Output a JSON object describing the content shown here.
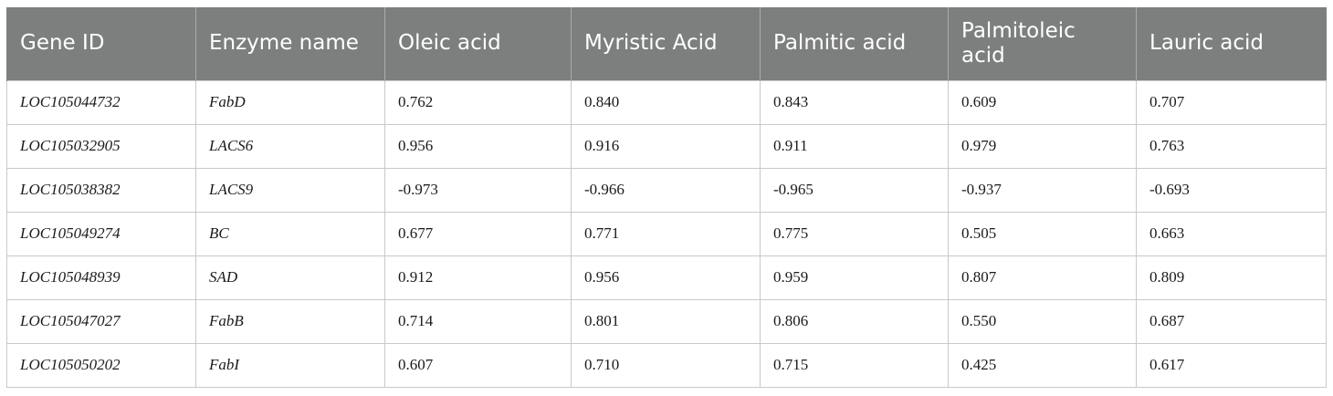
{
  "table": {
    "headers": [
      "Gene ID",
      "Enzyme name",
      "Oleic acid",
      "Myristic Acid",
      "Palmitic acid",
      "Palmitoleic acid",
      "Lauric acid"
    ],
    "rows": [
      [
        "LOC105044732",
        "FabD",
        "0.762",
        "0.840",
        "0.843",
        "0.609",
        "0.707"
      ],
      [
        "LOC105032905",
        "LACS6",
        "0.956",
        "0.916",
        "0.911",
        "0.979",
        "0.763"
      ],
      [
        "LOC105038382",
        "LACS9",
        "-0.973",
        "-0.966",
        "-0.965",
        "-0.937",
        "-0.693"
      ],
      [
        "LOC105049274",
        "BC",
        "0.677",
        "0.771",
        "0.775",
        "0.505",
        "0.663"
      ],
      [
        "LOC105048939",
        "SAD",
        "0.912",
        "0.956",
        "0.959",
        "0.807",
        "0.809"
      ],
      [
        "LOC105047027",
        "FabB",
        "0.714",
        "0.801",
        "0.806",
        "0.550",
        "0.687"
      ],
      [
        "LOC105050202",
        "FabI",
        "0.607",
        "0.710",
        "0.715",
        "0.425",
        "0.617"
      ]
    ]
  },
  "colors": {
    "header_background": "#7d7f7e",
    "header_text": "#ffffff",
    "grid_line": "#c9c9c9"
  }
}
